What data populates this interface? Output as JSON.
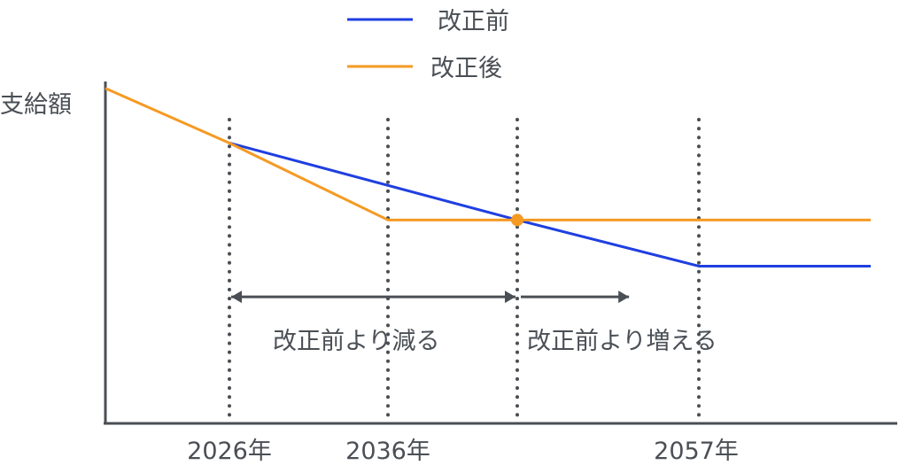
{
  "chart_data": {
    "type": "line",
    "ylabel": "支給額",
    "xlim": [
      2014,
      2070
    ],
    "ylim": [
      0,
      100
    ],
    "x_ticks": [
      {
        "x": 2026,
        "label": "2026年"
      },
      {
        "x": 2036,
        "label": "2036年"
      },
      {
        "x": 2057,
        "label": "2057年"
      }
    ],
    "vlines": [
      2026,
      2036,
      2044,
      2057
    ],
    "series": [
      {
        "name": "改正前",
        "color": "#1f3fe0",
        "points": [
          [
            2026,
            82
          ],
          [
            2044,
            59.5
          ],
          [
            2057,
            46
          ],
          [
            2068,
            46
          ]
        ]
      },
      {
        "name": "改正後",
        "color": "#f59a23",
        "points": [
          [
            2014,
            98
          ],
          [
            2026,
            82
          ],
          [
            2036,
            59.5
          ],
          [
            2068,
            59.5
          ]
        ]
      }
    ],
    "highlight_point": {
      "x": 2044,
      "y": 59.5,
      "color": "#f59a23"
    },
    "annotations": [
      {
        "text": "改正前より減る",
        "from": 2026,
        "to": 2044,
        "y": 37
      },
      {
        "text": "改正前より増える",
        "from": 2044,
        "to": 2052,
        "y": 37
      }
    ],
    "legend_position": "top-center",
    "grid": false
  }
}
